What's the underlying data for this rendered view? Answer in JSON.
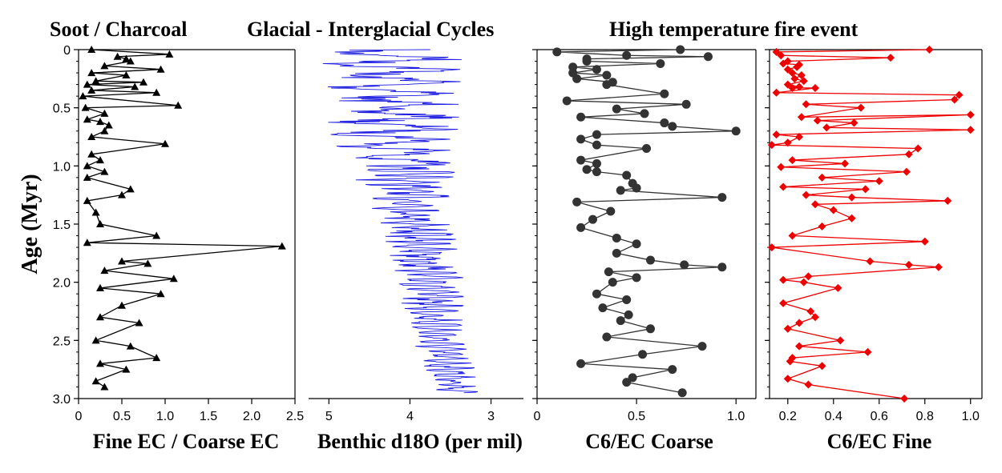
{
  "chart_data": [
    {
      "type": "line",
      "title": "Soot / Charcoal",
      "xlabel": "Fine EC / Coarse EC",
      "ylabel": "Age (Myr)",
      "xlim": [
        0,
        2.5
      ],
      "ylim": [
        0,
        3.0
      ],
      "xticks": [
        "0",
        "0.5",
        "1.0",
        "1.5",
        "2.0",
        "2.5"
      ],
      "yticks": [
        "0",
        "0.5",
        "1.0",
        "1.5",
        "2.0",
        "2.5",
        "3.0"
      ],
      "y_inverted": true,
      "color": "#000000",
      "marker": "triangle",
      "series": [
        {
          "x": [
            0.15,
            1.05,
            0.45,
            0.55,
            0.6,
            0.3,
            0.95,
            0.15,
            0.55,
            0.2,
            0.75,
            0.1,
            0.65,
            0.15,
            0.9,
            0.05,
            1.15,
            0.08,
            0.3,
            0.1,
            0.25,
            0.35,
            0.3,
            0.15,
            1.0,
            0.15,
            0.25,
            0.1,
            0.3,
            0.1,
            0.6,
            0.5,
            0.1,
            0.2,
            0.25,
            0.9,
            0.1,
            2.35,
            0.5,
            0.8,
            0.3,
            1.1,
            0.25,
            0.95,
            0.5,
            0.25,
            0.7,
            0.2,
            0.6,
            0.9,
            0.25,
            0.55,
            0.2,
            0.3
          ],
          "y": [
            0.0,
            0.04,
            0.06,
            0.08,
            0.1,
            0.14,
            0.17,
            0.2,
            0.22,
            0.27,
            0.28,
            0.3,
            0.32,
            0.35,
            0.37,
            0.4,
            0.48,
            0.5,
            0.55,
            0.6,
            0.62,
            0.65,
            0.7,
            0.75,
            0.81,
            0.9,
            0.95,
            1.0,
            1.05,
            1.1,
            1.2,
            1.25,
            1.3,
            1.4,
            1.5,
            1.6,
            1.66,
            1.69,
            1.82,
            1.84,
            1.9,
            1.97,
            2.05,
            2.1,
            2.2,
            2.3,
            2.35,
            2.5,
            2.55,
            2.65,
            2.7,
            2.75,
            2.85,
            2.9
          ]
        }
      ]
    },
    {
      "type": "line",
      "title": "Glacial - Interglacial Cycles",
      "xlabel": "Benthic d18O (per mil)",
      "xlim": [
        5.25,
        2.6
      ],
      "ylim": [
        0,
        3.0
      ],
      "xticks": [
        "5",
        "4",
        "3"
      ],
      "x_inverted": true,
      "y_inverted": true,
      "color": "#1a1ae0",
      "series": [
        {
          "note_values": "d18O vs age, sampled every 0.005 Myr",
          "x_start_age": 0,
          "x_end_age": 2.95,
          "range_amplitude_by_age": [
            [
              0.0,
              1.0
            ],
            [
              0.75,
              0.85
            ],
            [
              1.25,
              0.6
            ],
            [
              2.0,
              0.45
            ],
            [
              2.95,
              0.3
            ]
          ],
          "mean_by_age": [
            [
              0.0,
              4.2
            ],
            [
              0.75,
              4.15
            ],
            [
              1.25,
              4.0
            ],
            [
              2.0,
              3.75
            ],
            [
              2.5,
              3.65
            ],
            [
              2.95,
              3.4
            ]
          ]
        }
      ]
    },
    {
      "type": "line",
      "title": "High temperature fire event",
      "xlabel": "C6/EC Coarse",
      "xlim": [
        0,
        1.1
      ],
      "ylim": [
        0,
        3.0
      ],
      "xticks": [
        "0",
        "0.5",
        "1.0"
      ],
      "y_inverted": true,
      "color": "#333333",
      "marker": "circle",
      "series": [
        {
          "x": [
            0.72,
            0.1,
            0.45,
            0.86,
            0.25,
            0.25,
            0.62,
            0.18,
            0.3,
            0.18,
            0.35,
            0.2,
            0.38,
            0.35,
            0.64,
            0.15,
            0.75,
            0.4,
            0.54,
            0.22,
            0.64,
            0.68,
            1.0,
            0.3,
            0.22,
            0.3,
            0.55,
            0.22,
            0.3,
            0.25,
            0.3,
            0.45,
            0.48,
            0.5,
            0.42,
            0.93,
            0.2,
            0.37,
            0.28,
            0.22,
            0.4,
            0.5,
            0.4,
            0.57,
            0.74,
            0.93,
            0.36,
            0.5,
            0.38,
            0.3,
            0.45,
            0.33,
            0.46,
            0.42,
            0.57,
            0.35,
            0.83,
            0.53,
            0.22,
            0.68,
            0.48,
            0.45,
            0.73
          ],
          "y": [
            0.0,
            0.02,
            0.05,
            0.06,
            0.08,
            0.1,
            0.12,
            0.15,
            0.17,
            0.2,
            0.22,
            0.25,
            0.28,
            0.3,
            0.38,
            0.44,
            0.47,
            0.51,
            0.55,
            0.58,
            0.63,
            0.66,
            0.7,
            0.73,
            0.77,
            0.82,
            0.85,
            0.95,
            0.98,
            1.03,
            1.05,
            1.08,
            1.15,
            1.19,
            1.21,
            1.27,
            1.31,
            1.39,
            1.46,
            1.53,
            1.62,
            1.67,
            1.75,
            1.81,
            1.85,
            1.87,
            1.91,
            1.96,
            2.0,
            2.1,
            2.15,
            2.22,
            2.28,
            2.33,
            2.4,
            2.47,
            2.55,
            2.62,
            2.7,
            2.75,
            2.82,
            2.86,
            2.95
          ]
        }
      ]
    },
    {
      "type": "line",
      "title": "",
      "xlabel": "C6/EC Fine",
      "xlim": [
        0.12,
        1.05
      ],
      "ylim": [
        0,
        3.0
      ],
      "xticks": [
        "0.2",
        "0.4",
        "0.6",
        "0.8",
        "1.0"
      ],
      "y_inverted": true,
      "color": "#ee0000",
      "marker": "diamond",
      "series": [
        {
          "x": [
            0.82,
            0.15,
            0.17,
            0.65,
            0.2,
            0.18,
            0.25,
            0.24,
            0.2,
            0.22,
            0.26,
            0.23,
            0.27,
            0.2,
            0.25,
            0.22,
            0.32,
            0.15,
            0.95,
            0.93,
            0.28,
            0.52,
            0.26,
            1.0,
            0.33,
            0.49,
            0.37,
            1.0,
            0.15,
            0.25,
            0.2,
            0.13,
            0.77,
            0.73,
            0.22,
            0.45,
            0.17,
            0.72,
            0.35,
            0.6,
            0.18,
            0.54,
            0.28,
            0.48,
            0.9,
            0.32,
            0.4,
            0.48,
            0.35,
            0.22,
            0.8,
            0.13,
            0.56,
            0.73,
            0.86,
            0.29,
            0.18,
            0.27,
            0.42,
            0.18,
            0.3,
            0.32,
            0.25,
            0.2,
            0.43,
            0.25,
            0.55,
            0.22,
            0.21,
            0.35,
            0.2,
            0.29,
            0.71
          ],
          "y": [
            0.0,
            0.02,
            0.05,
            0.07,
            0.1,
            0.12,
            0.13,
            0.15,
            0.17,
            0.2,
            0.22,
            0.25,
            0.27,
            0.3,
            0.32,
            0.33,
            0.33,
            0.37,
            0.39,
            0.43,
            0.47,
            0.5,
            0.58,
            0.56,
            0.61,
            0.63,
            0.67,
            0.69,
            0.73,
            0.75,
            0.8,
            0.82,
            0.85,
            0.9,
            0.95,
            0.98,
            1.01,
            1.05,
            1.1,
            1.13,
            1.18,
            1.2,
            1.25,
            1.27,
            1.3,
            1.33,
            1.38,
            1.45,
            1.52,
            1.6,
            1.65,
            1.7,
            1.82,
            1.85,
            1.87,
            1.95,
            1.98,
            2.0,
            2.05,
            2.18,
            2.25,
            2.3,
            2.35,
            2.4,
            2.5,
            2.55,
            2.6,
            2.65,
            2.68,
            2.72,
            2.83,
            2.88,
            3.0
          ]
        }
      ]
    }
  ]
}
